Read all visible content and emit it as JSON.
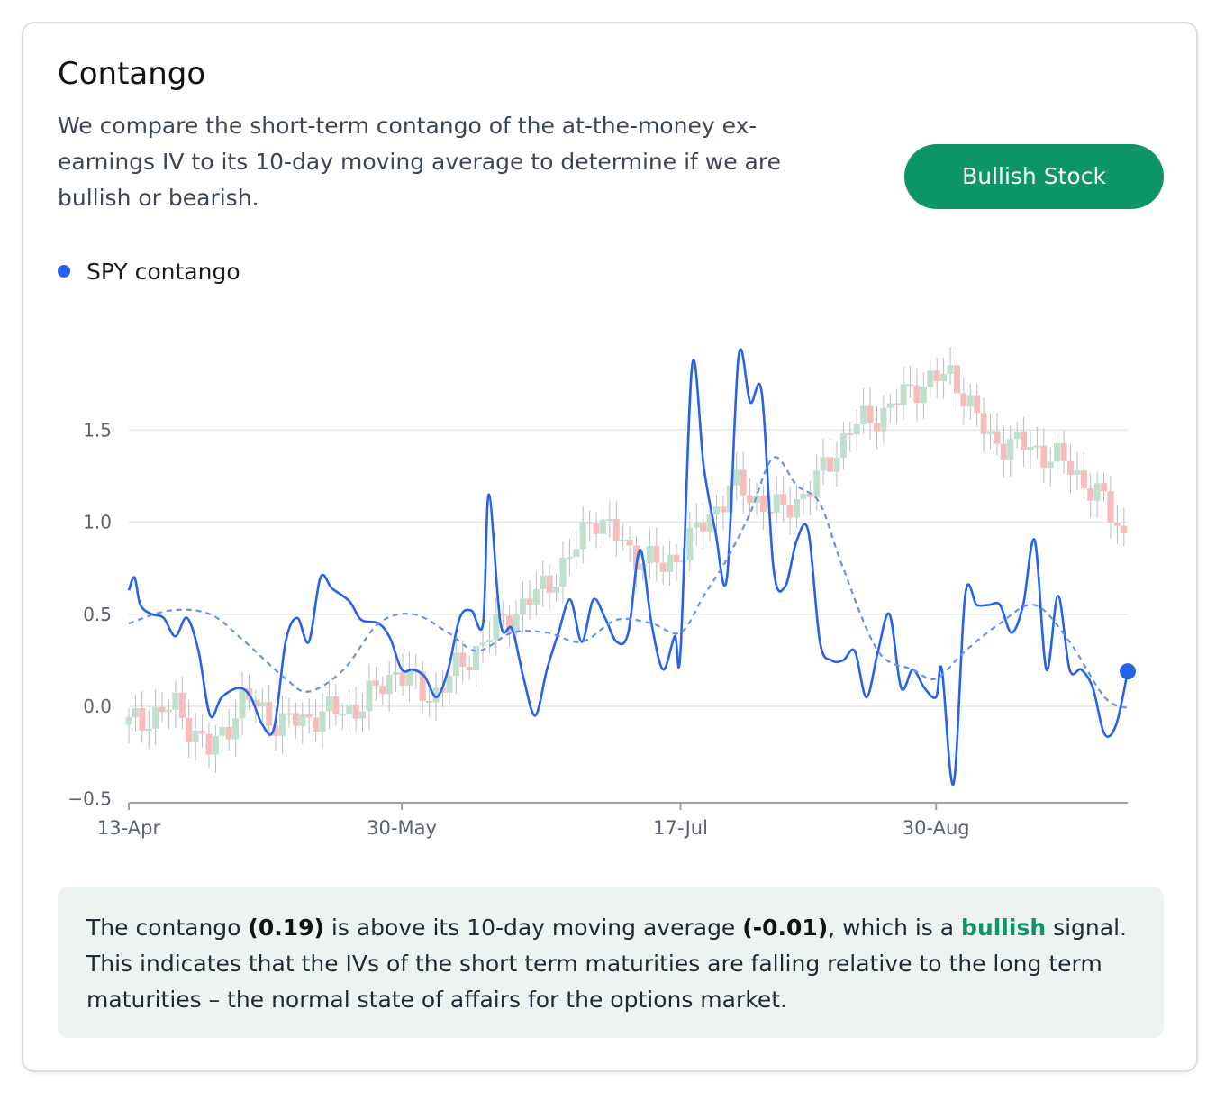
{
  "card": {
    "title": "Contango",
    "description": "We compare the short-term contango of the at-the-money ex-earnings IV to its 10-day moving average to determine if we are bullish or bearish.",
    "signal_button": "Bullish Stock"
  },
  "legend": {
    "label": "SPY contango",
    "color": "#2563eb"
  },
  "summary": {
    "p1": "The contango ",
    "value": "(0.19)",
    "p2": " is above its 10-day moving average ",
    "ma_value": "(-0.01)",
    "p3": ", which is a ",
    "signal_word": "bullish",
    "p4": " signal. This indicates that the IVs of the short term maturities are falling relative to the long term maturities – the normal state of affairs for the options market."
  },
  "colors": {
    "accent_green": "#0e9566",
    "line_blue": "#2563eb",
    "ma_blue": "#6b8ef0",
    "candle_up": "#bfe0cc",
    "candle_down": "#f7bdbd"
  },
  "chart_data": {
    "type": "line",
    "ylim": [
      -0.5,
      1.9
    ],
    "yticks": [
      -0.5,
      0.0,
      0.5,
      1.0,
      1.5
    ],
    "ytick_labels": [
      "−0.5",
      "0.0",
      "0.5",
      "1.0",
      "1.5"
    ],
    "x_start": "2020-04-13",
    "x_end": "2020-10-02",
    "xticks": [
      {
        "date": "2020-04-13",
        "label": "13-Apr"
      },
      {
        "date": "2020-05-30",
        "label": "30-May"
      },
      {
        "date": "2020-07-17",
        "label": "17-Jul"
      },
      {
        "date": "2020-08-30",
        "label": "30-Aug"
      }
    ],
    "grid": true,
    "legend_position": "top-left",
    "series": [
      {
        "name": "SPY contango",
        "style": "solid",
        "points": [
          [
            "2020-04-13",
            0.63
          ],
          [
            "2020-04-14",
            0.7
          ],
          [
            "2020-04-15",
            0.55
          ],
          [
            "2020-04-17",
            0.5
          ],
          [
            "2020-04-19",
            0.48
          ],
          [
            "2020-04-21",
            0.38
          ],
          [
            "2020-04-23",
            0.48
          ],
          [
            "2020-04-25",
            0.3
          ],
          [
            "2020-04-27",
            -0.05
          ],
          [
            "2020-04-29",
            0.05
          ],
          [
            "2020-05-02",
            0.1
          ],
          [
            "2020-05-04",
            0.05
          ],
          [
            "2020-05-06",
            -0.1
          ],
          [
            "2020-05-08",
            -0.12
          ],
          [
            "2020-05-10",
            0.35
          ],
          [
            "2020-05-12",
            0.48
          ],
          [
            "2020-05-14",
            0.35
          ],
          [
            "2020-05-16",
            0.7
          ],
          [
            "2020-05-18",
            0.64
          ],
          [
            "2020-05-21",
            0.57
          ],
          [
            "2020-05-23",
            0.47
          ],
          [
            "2020-05-26",
            0.45
          ],
          [
            "2020-05-28",
            0.37
          ],
          [
            "2020-05-30",
            0.2
          ],
          [
            "2020-06-01",
            0.2
          ],
          [
            "2020-06-03",
            0.16
          ],
          [
            "2020-06-05",
            0.05
          ],
          [
            "2020-06-07",
            0.2
          ],
          [
            "2020-06-09",
            0.48
          ],
          [
            "2020-06-11",
            0.52
          ],
          [
            "2020-06-13",
            0.45
          ],
          [
            "2020-06-14",
            1.15
          ],
          [
            "2020-06-16",
            0.45
          ],
          [
            "2020-06-18",
            0.42
          ],
          [
            "2020-06-20",
            0.15
          ],
          [
            "2020-06-22",
            -0.05
          ],
          [
            "2020-06-24",
            0.2
          ],
          [
            "2020-06-26",
            0.4
          ],
          [
            "2020-06-28",
            0.58
          ],
          [
            "2020-06-30",
            0.35
          ],
          [
            "2020-07-02",
            0.58
          ],
          [
            "2020-07-04",
            0.48
          ],
          [
            "2020-07-06",
            0.35
          ],
          [
            "2020-07-08",
            0.4
          ],
          [
            "2020-07-10",
            0.85
          ],
          [
            "2020-07-12",
            0.45
          ],
          [
            "2020-07-14",
            0.2
          ],
          [
            "2020-07-16",
            0.38
          ],
          [
            "2020-07-17",
            0.3
          ],
          [
            "2020-07-19",
            1.85
          ],
          [
            "2020-07-21",
            1.3
          ],
          [
            "2020-07-23",
            0.95
          ],
          [
            "2020-07-25",
            0.7
          ],
          [
            "2020-07-27",
            1.9
          ],
          [
            "2020-07-29",
            1.65
          ],
          [
            "2020-07-31",
            1.7
          ],
          [
            "2020-08-02",
            0.75
          ],
          [
            "2020-08-04",
            0.65
          ],
          [
            "2020-08-06",
            0.9
          ],
          [
            "2020-08-08",
            0.95
          ],
          [
            "2020-08-10",
            0.35
          ],
          [
            "2020-08-12",
            0.25
          ],
          [
            "2020-08-14",
            0.25
          ],
          [
            "2020-08-16",
            0.3
          ],
          [
            "2020-08-18",
            0.05
          ],
          [
            "2020-08-20",
            0.3
          ],
          [
            "2020-08-22",
            0.5
          ],
          [
            "2020-08-24",
            0.1
          ],
          [
            "2020-08-26",
            0.2
          ],
          [
            "2020-08-28",
            0.1
          ],
          [
            "2020-08-30",
            0.05
          ],
          [
            "2020-08-31",
            0.2
          ],
          [
            "2020-09-02",
            -0.42
          ],
          [
            "2020-09-04",
            0.6
          ],
          [
            "2020-09-06",
            0.55
          ],
          [
            "2020-09-08",
            0.55
          ],
          [
            "2020-09-10",
            0.55
          ],
          [
            "2020-09-12",
            0.4
          ],
          [
            "2020-09-14",
            0.55
          ],
          [
            "2020-09-16",
            0.9
          ],
          [
            "2020-09-18",
            0.2
          ],
          [
            "2020-09-20",
            0.6
          ],
          [
            "2020-09-22",
            0.2
          ],
          [
            "2020-09-24",
            0.2
          ],
          [
            "2020-09-26",
            0.1
          ],
          [
            "2020-09-28",
            -0.15
          ],
          [
            "2020-09-30",
            -0.1
          ],
          [
            "2020-10-02",
            0.19
          ]
        ]
      },
      {
        "name": "",
        "style": "dashed",
        "points": [
          [
            "2020-04-13",
            0.45
          ],
          [
            "2020-04-20",
            0.52
          ],
          [
            "2020-04-27",
            0.5
          ],
          [
            "2020-05-03",
            0.35
          ],
          [
            "2020-05-10",
            0.15
          ],
          [
            "2020-05-14",
            0.08
          ],
          [
            "2020-05-20",
            0.2
          ],
          [
            "2020-05-26",
            0.45
          ],
          [
            "2020-06-01",
            0.5
          ],
          [
            "2020-06-07",
            0.4
          ],
          [
            "2020-06-12",
            0.3
          ],
          [
            "2020-06-18",
            0.4
          ],
          [
            "2020-06-24",
            0.4
          ],
          [
            "2020-06-30",
            0.35
          ],
          [
            "2020-07-06",
            0.47
          ],
          [
            "2020-07-12",
            0.45
          ],
          [
            "2020-07-17",
            0.4
          ],
          [
            "2020-07-21",
            0.6
          ],
          [
            "2020-07-25",
            0.8
          ],
          [
            "2020-07-29",
            1.05
          ],
          [
            "2020-08-02",
            1.35
          ],
          [
            "2020-08-06",
            1.2
          ],
          [
            "2020-08-10",
            1.1
          ],
          [
            "2020-08-14",
            0.75
          ],
          [
            "2020-08-20",
            0.3
          ],
          [
            "2020-08-26",
            0.2
          ],
          [
            "2020-08-30",
            0.15
          ],
          [
            "2020-09-04",
            0.3
          ],
          [
            "2020-09-10",
            0.45
          ],
          [
            "2020-09-16",
            0.55
          ],
          [
            "2020-09-22",
            0.35
          ],
          [
            "2020-09-28",
            0.05
          ],
          [
            "2020-10-02",
            -0.01
          ]
        ]
      }
    ],
    "last_value": 0.19,
    "moving_average_last": -0.01
  }
}
